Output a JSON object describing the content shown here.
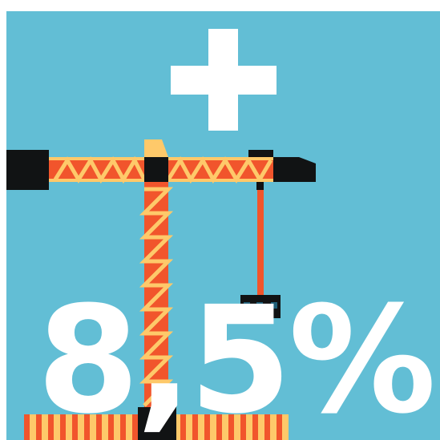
{
  "colors": {
    "background": "#62bed5",
    "white": "#ffffff",
    "orange": "#f1552c",
    "yellow": "#fec96a",
    "dark": "#111314",
    "blue": "#1f5f78"
  },
  "icons": {
    "plus": "plus-icon",
    "crane": "tower-crane-icon"
  },
  "headline": {
    "value": "8,5%"
  }
}
